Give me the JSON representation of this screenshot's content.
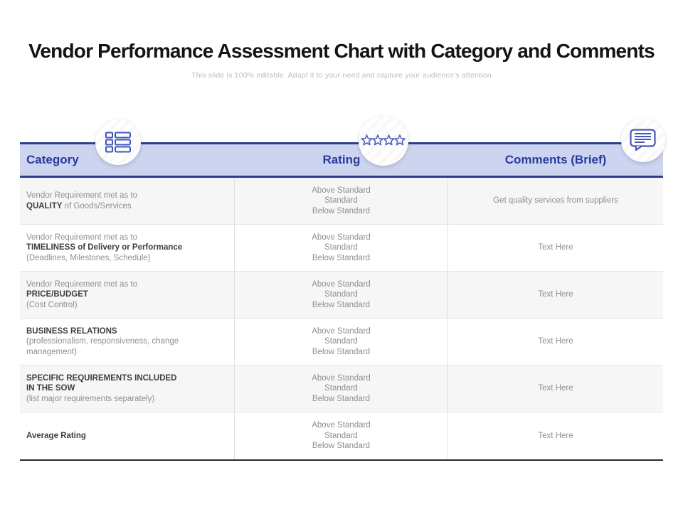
{
  "page": {
    "title": "Vendor Performance Assessment Chart with Category and Comments",
    "subtitle": "This slide is 100% editable. Adapt it to your need and capture your audience's attention"
  },
  "colors": {
    "header_bg": "#cdd4ef",
    "header_text": "#2a3ba0",
    "border_blue": "#2d3e92",
    "table_bottom_border": "#262b38",
    "icon_blue": "#4458ba",
    "row_alt_bg": "#f6f6f6",
    "body_text": "#8f8f8f",
    "emphasis_text": "#3e3e3e",
    "subtitle_text": "#bdbdbd"
  },
  "icons": [
    {
      "name": "list-icon",
      "column": "Category"
    },
    {
      "name": "rating-stars-icon",
      "column": "Rating",
      "stars": 4
    },
    {
      "name": "speech-bubble-icon",
      "column": "Comments (Brief)"
    }
  ],
  "table": {
    "headers": [
      "Category",
      "Rating",
      "Comments (Brief)"
    ],
    "rating_options": [
      "Above Standard",
      "Standard",
      "Below Standard"
    ],
    "rows": [
      {
        "category_lines": [
          [
            {
              "text": "Vendor Requirement met as to",
              "bold": false
            }
          ],
          [
            {
              "text": "QUALITY",
              "bold": true
            },
            {
              "text": " of Goods/Services",
              "bold": false
            }
          ]
        ],
        "comment": "Get quality services from suppliers"
      },
      {
        "category_lines": [
          [
            {
              "text": "Vendor Requirement met as to",
              "bold": false
            }
          ],
          [
            {
              "text": "TIMELINESS of Delivery or Performance",
              "bold": true
            }
          ],
          [
            {
              "text": "(Deadlines, Milestones, Schedule)",
              "bold": false
            }
          ]
        ],
        "comment": "Text Here"
      },
      {
        "category_lines": [
          [
            {
              "text": "Vendor Requirement met as to",
              "bold": false
            }
          ],
          [
            {
              "text": "PRICE/BUDGET",
              "bold": true
            }
          ],
          [
            {
              "text": "(Cost Control)",
              "bold": false
            }
          ]
        ],
        "comment": "Text Here"
      },
      {
        "category_lines": [
          [
            {
              "text": "BUSINESS RELATIONS",
              "bold": true
            }
          ],
          [
            {
              "text": "(professionalism, responsiveness, change management)",
              "bold": false
            }
          ]
        ],
        "comment": "Text Here"
      },
      {
        "category_lines": [
          [
            {
              "text": "SPECIFIC REQUIREMENTS INCLUDED",
              "bold": true
            }
          ],
          [
            {
              "text": "IN THE SOW",
              "bold": true
            }
          ],
          [
            {
              "text": "(list major requirements separately)",
              "bold": false
            }
          ]
        ],
        "comment": "Text Here"
      },
      {
        "category_lines": [
          [
            {
              "text": "Average Rating",
              "bold": true
            }
          ]
        ],
        "comment": "Text Here"
      }
    ]
  }
}
